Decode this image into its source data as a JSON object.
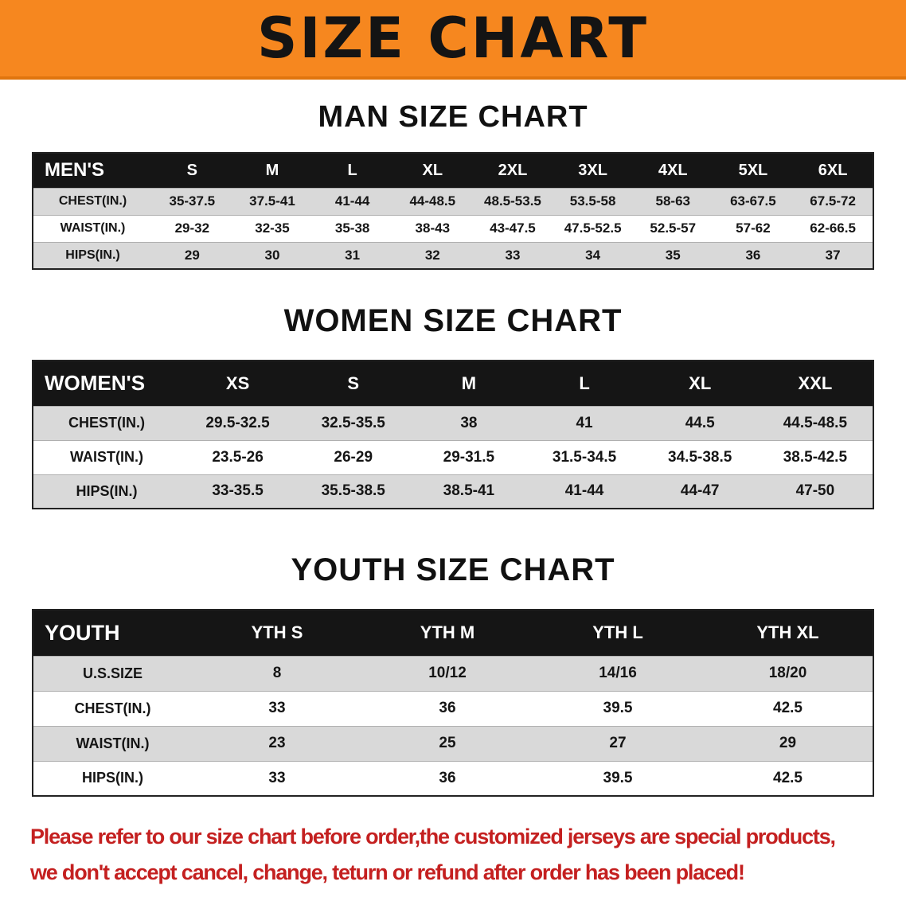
{
  "banner": {
    "title": "SIZE CHART"
  },
  "colors": {
    "banner_bg": "#f6871f",
    "table_header_bg": "#151515",
    "stripe_row_bg": "#d9d9d9",
    "disclaimer_text": "#c42020"
  },
  "sections": [
    {
      "id": "men",
      "heading": "MAN SIZE CHART",
      "table": {
        "header": [
          "MEN'S",
          "S",
          "M",
          "L",
          "XL",
          "2XL",
          "3XL",
          "4XL",
          "5XL",
          "6XL"
        ],
        "rows": [
          {
            "label": "CHEST(IN.)",
            "values": [
              "35-37.5",
              "37.5-41",
              "41-44",
              "44-48.5",
              "48.5-53.5",
              "53.5-58",
              "58-63",
              "63-67.5",
              "67.5-72"
            ]
          },
          {
            "label": "WAIST(IN.)",
            "values": [
              "29-32",
              "32-35",
              "35-38",
              "38-43",
              "43-47.5",
              "47.5-52.5",
              "52.5-57",
              "57-62",
              "62-66.5"
            ]
          },
          {
            "label": "HIPS(IN.)",
            "values": [
              "29",
              "30",
              "31",
              "32",
              "33",
              "34",
              "35",
              "36",
              "37"
            ]
          }
        ]
      }
    },
    {
      "id": "women",
      "heading": "WOMEN SIZE CHART",
      "table": {
        "header": [
          "WOMEN'S",
          "XS",
          "S",
          "M",
          "L",
          "XL",
          "XXL"
        ],
        "rows": [
          {
            "label": "CHEST(IN.)",
            "values": [
              "29.5-32.5",
              "32.5-35.5",
              "38",
              "41",
              "44.5",
              "44.5-48.5"
            ]
          },
          {
            "label": "WAIST(IN.)",
            "values": [
              "23.5-26",
              "26-29",
              "29-31.5",
              "31.5-34.5",
              "34.5-38.5",
              "38.5-42.5"
            ]
          },
          {
            "label": "HIPS(IN.)",
            "values": [
              "33-35.5",
              "35.5-38.5",
              "38.5-41",
              "41-44",
              "44-47",
              "47-50"
            ]
          }
        ]
      }
    },
    {
      "id": "youth",
      "heading": "YOUTH SIZE CHART",
      "table": {
        "header": [
          "YOUTH",
          "YTH S",
          "YTH M",
          "YTH L",
          "YTH XL"
        ],
        "rows": [
          {
            "label": "U.S.SIZE",
            "values": [
              "8",
              "10/12",
              "14/16",
              "18/20"
            ]
          },
          {
            "label": "CHEST(IN.)",
            "values": [
              "33",
              "36",
              "39.5",
              "42.5"
            ]
          },
          {
            "label": "WAIST(IN.)",
            "values": [
              "23",
              "25",
              "27",
              "29"
            ]
          },
          {
            "label": "HIPS(IN.)",
            "values": [
              "33",
              "36",
              "39.5",
              "42.5"
            ]
          }
        ]
      }
    }
  ],
  "disclaimer": {
    "lines": [
      "Please refer to our size chart before order,the customized jerseys are special products,",
      "we don't accept cancel, change, teturn or refund after order has been placed!"
    ]
  }
}
